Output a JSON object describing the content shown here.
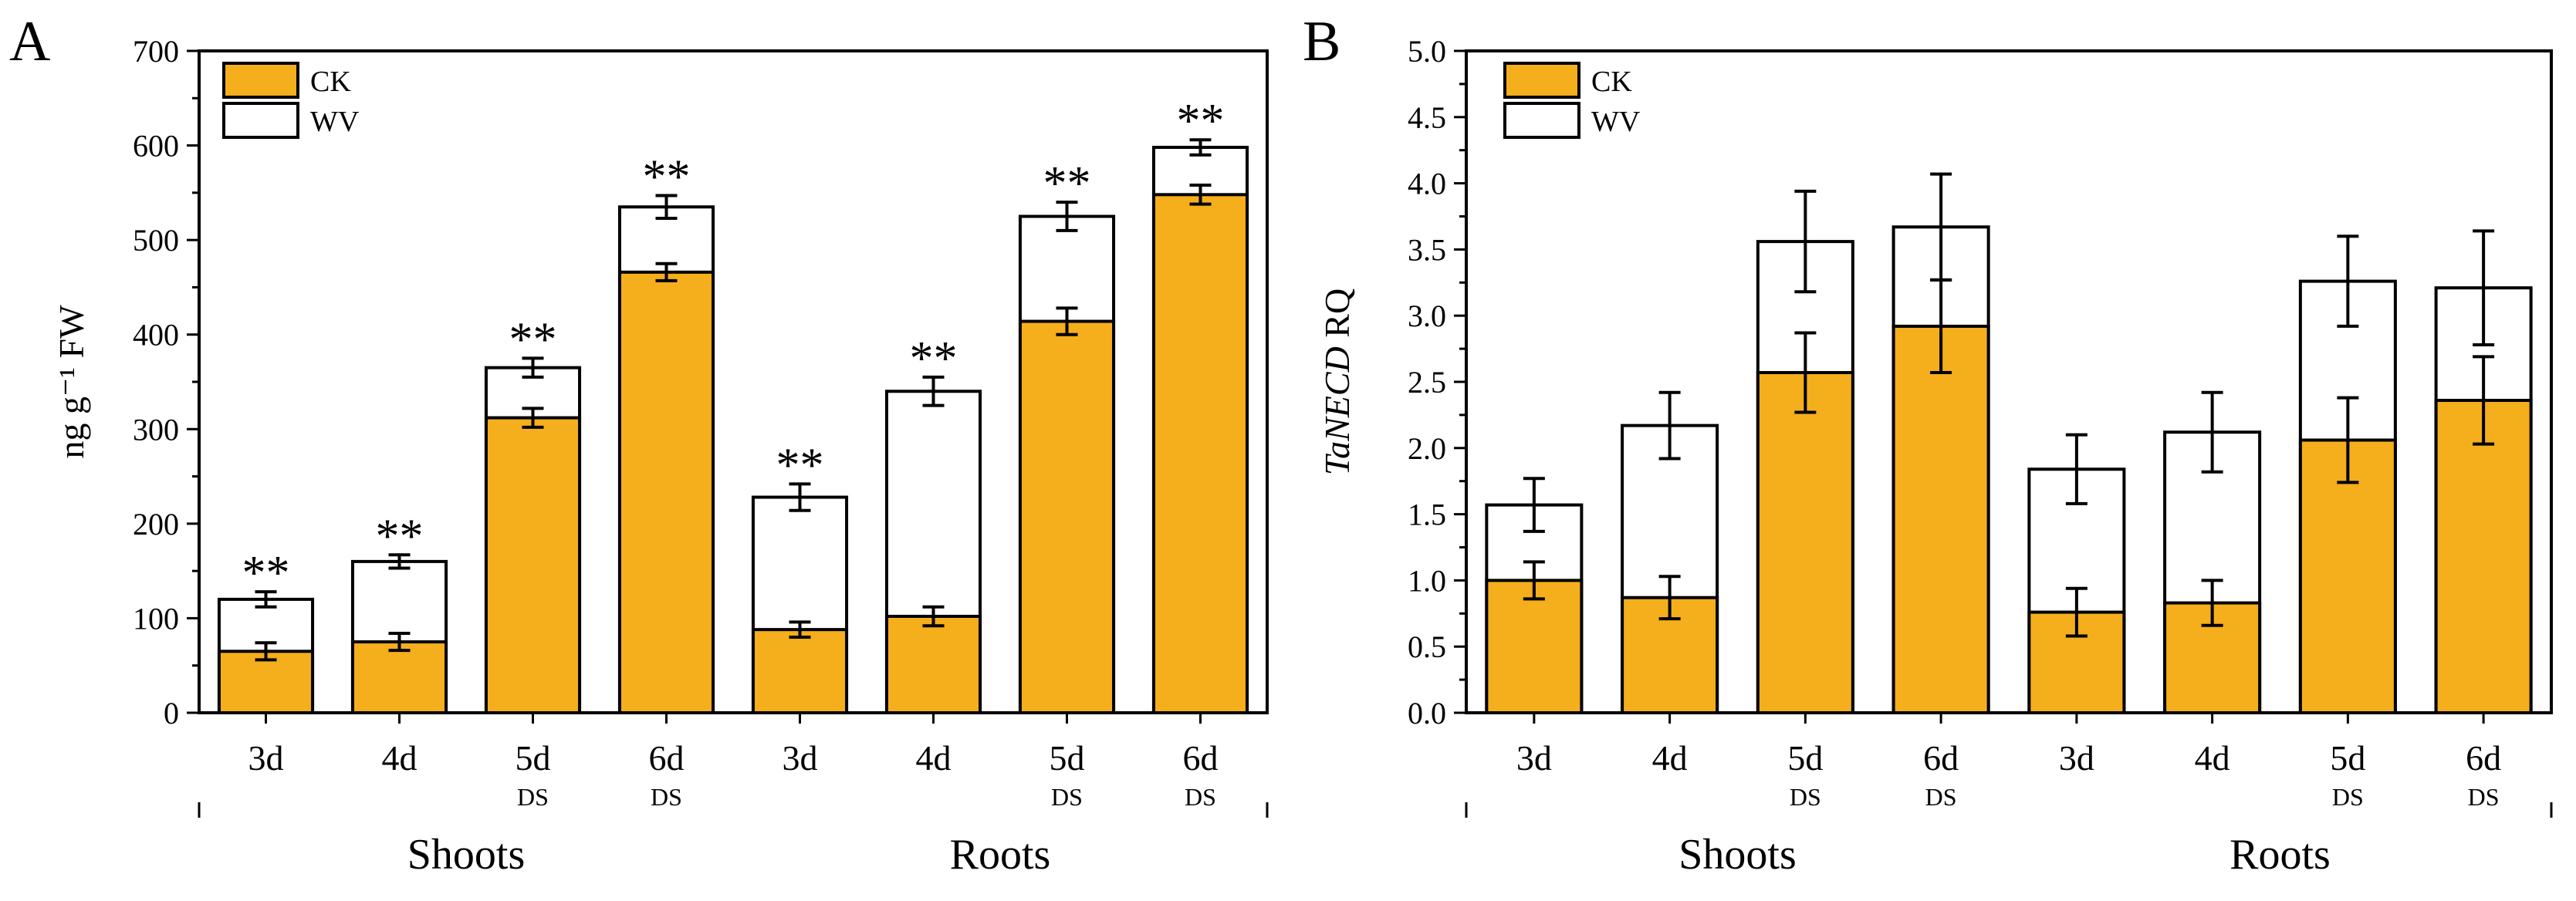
{
  "chart_data": [
    {
      "panel": "A",
      "type": "bar",
      "ylabel": "ng g⁻¹ FW",
      "ylim": [
        0,
        700
      ],
      "yticks": [
        0,
        100,
        200,
        300,
        400,
        500,
        600,
        700
      ],
      "categories": [
        "3d",
        "4d",
        "5d",
        "6d",
        "3d",
        "4d",
        "5d",
        "6d"
      ],
      "sublabels": [
        "",
        "",
        "DS",
        "DS",
        "",
        "",
        "DS",
        "DS"
      ],
      "groups": [
        "Shoots",
        "Roots"
      ],
      "legend": [
        "CK",
        "WV"
      ],
      "series": [
        {
          "name": "WV",
          "values": [
            120,
            160,
            365,
            535,
            228,
            340,
            525,
            598
          ],
          "errors": [
            8,
            7,
            10,
            12,
            14,
            15,
            15,
            8
          ]
        },
        {
          "name": "CK",
          "values": [
            65,
            75,
            312,
            466,
            88,
            102,
            414,
            548
          ],
          "errors": [
            9,
            9,
            10,
            9,
            8,
            10,
            14,
            10
          ]
        }
      ],
      "annotations": [
        "**",
        "**",
        "**",
        "**",
        "**",
        "**",
        "**",
        "**"
      ],
      "colors": {
        "CK": "#f5ae1c",
        "WV": "#ffffff",
        "stroke": "#000000"
      }
    },
    {
      "panel": "B",
      "type": "bar",
      "ylabel_italic": "TaNECD",
      "ylabel_rest": " RQ",
      "ylim": [
        0,
        5
      ],
      "yticks": [
        "0.0",
        "0.5",
        "1.0",
        "1.5",
        "2.0",
        "2.5",
        "3.0",
        "3.5",
        "4.0",
        "4.5",
        "5.0"
      ],
      "categories": [
        "3d",
        "4d",
        "5d",
        "6d",
        "3d",
        "4d",
        "5d",
        "6d"
      ],
      "sublabels": [
        "",
        "",
        "DS",
        "DS",
        "",
        "",
        "DS",
        "DS"
      ],
      "groups": [
        "Shoots",
        "Roots"
      ],
      "legend": [
        "CK",
        "WV"
      ],
      "series": [
        {
          "name": "WV",
          "values": [
            1.57,
            2.17,
            3.56,
            3.67,
            1.84,
            2.12,
            3.26,
            3.21
          ],
          "errors": [
            0.2,
            0.25,
            0.38,
            0.4,
            0.26,
            0.3,
            0.34,
            0.43
          ]
        },
        {
          "name": "CK",
          "values": [
            1.0,
            0.87,
            2.57,
            2.92,
            0.76,
            0.83,
            2.06,
            2.36
          ],
          "errors": [
            0.14,
            0.16,
            0.3,
            0.35,
            0.18,
            0.17,
            0.32,
            0.33
          ]
        }
      ],
      "colors": {
        "CK": "#f5ae1c",
        "WV": "#ffffff",
        "stroke": "#000000"
      }
    }
  ]
}
